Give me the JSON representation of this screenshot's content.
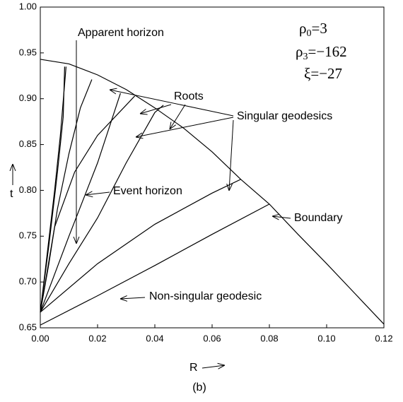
{
  "chart_data": {
    "type": "line",
    "title": "(b)",
    "x_label": "R",
    "y_label": "t",
    "xlim": [
      0,
      0.12
    ],
    "ylim": [
      0.65,
      1.0
    ],
    "xticks": [
      {
        "value": 0,
        "label": "0.00"
      },
      0.02,
      0.04,
      0.06,
      0.08,
      {
        "value": 0.1,
        "label": "0.10"
      },
      0.12
    ],
    "yticks": [
      0.65,
      {
        "value": 0.7,
        "label": "0.70"
      },
      0.75,
      {
        "value": 0.8,
        "label": "0.80"
      },
      0.85,
      {
        "value": 0.9,
        "label": "0.90"
      },
      0.95,
      {
        "value": 1.0,
        "label": "1.00"
      }
    ],
    "color": "#000000",
    "series": [
      {
        "x": [
          0,
          0.01,
          0.02,
          0.03,
          0.04,
          0.05,
          0.06,
          0.07,
          0.08,
          0.09,
          0.1,
          0.11,
          0.12
        ],
        "values": [
          0.943,
          0.938,
          0.926,
          0.91,
          0.89,
          0.868,
          0.842,
          0.812,
          0.785,
          0.752,
          0.72,
          0.687,
          0.654
        ]
      },
      {
        "x": [
          0,
          0.002,
          0.005,
          0.007,
          0.009
        ],
        "values": [
          0.667,
          0.72,
          0.8,
          0.86,
          0.935
        ]
      },
      {
        "x": [
          0,
          0.003,
          0.006,
          0.008,
          0.0085
        ],
        "values": [
          0.667,
          0.74,
          0.82,
          0.88,
          0.935
        ]
      },
      {
        "x": [
          0,
          0.003,
          0.006,
          0.01,
          0.014,
          0.018
        ],
        "values": [
          0.667,
          0.72,
          0.78,
          0.84,
          0.89,
          0.921
        ]
      },
      {
        "x": [
          0,
          0.005,
          0.012,
          0.02,
          0.033
        ],
        "values": [
          0.667,
          0.76,
          0.82,
          0.86,
          0.903
        ]
      },
      {
        "x": [
          0,
          0.01,
          0.02,
          0.028
        ],
        "values": [
          0.667,
          0.75,
          0.83,
          0.906
        ]
      },
      {
        "x": [
          0,
          0.01,
          0.02,
          0.03,
          0.04,
          0.043
        ],
        "values": [
          0.667,
          0.72,
          0.77,
          0.83,
          0.885,
          0.893
        ]
      },
      {
        "x": [
          0,
          0.02,
          0.04,
          0.06,
          0.07
        ],
        "values": [
          0.667,
          0.72,
          0.763,
          0.797,
          0.812
        ]
      },
      {
        "x": [
          0,
          0.02,
          0.04,
          0.06,
          0.08
        ],
        "values": [
          0.653,
          0.685,
          0.718,
          0.752,
          0.785
        ]
      }
    ],
    "annotations": [
      "Apparent horizon",
      "Roots",
      "Singular geodesics",
      "Event horizon",
      "Boundary",
      "Non-singular geodesic"
    ],
    "parameters": [
      {
        "symbol": "ρ",
        "sub": "0",
        "rest": "=3"
      },
      {
        "symbol": "ρ",
        "sub": "3",
        "rest": "=−162"
      },
      {
        "symbol": "ξ",
        "rest": "=−27"
      }
    ]
  }
}
